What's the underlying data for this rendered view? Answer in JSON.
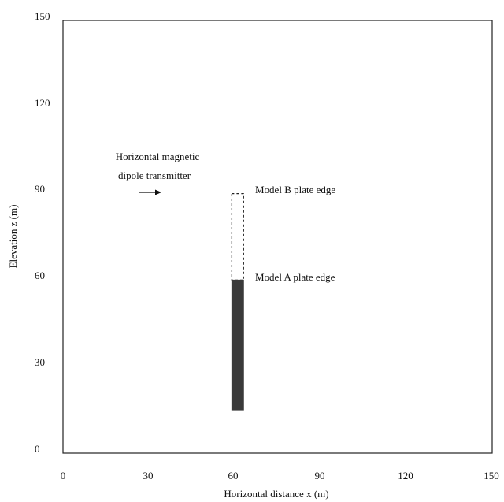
{
  "figure": {
    "x_axis": {
      "label": "Horizontal distance x (m)",
      "range": [
        0,
        150
      ],
      "ticks": [
        "0",
        "30",
        "60",
        "90",
        "120",
        "150"
      ]
    },
    "y_axis": {
      "label": "Elevation z (m)",
      "range": [
        0,
        150
      ],
      "ticks": [
        "0",
        "30",
        "60",
        "90",
        "120",
        "150"
      ]
    },
    "transmitter": {
      "label_line1": "Horizontal magnetic",
      "label_line2": "dipole transmitter",
      "arrow_direction": "right"
    },
    "plates": {
      "model_a": {
        "label": "Model A plate edge",
        "x_range": [
          59,
          62
        ],
        "z_range": [
          15,
          60
        ],
        "style": "solid",
        "color": "#3a3a3a"
      },
      "model_b": {
        "label": "Model B plate edge",
        "x_range": [
          59,
          62
        ],
        "z_range": [
          60,
          90
        ],
        "style": "dashed",
        "color": "#222222"
      }
    }
  }
}
